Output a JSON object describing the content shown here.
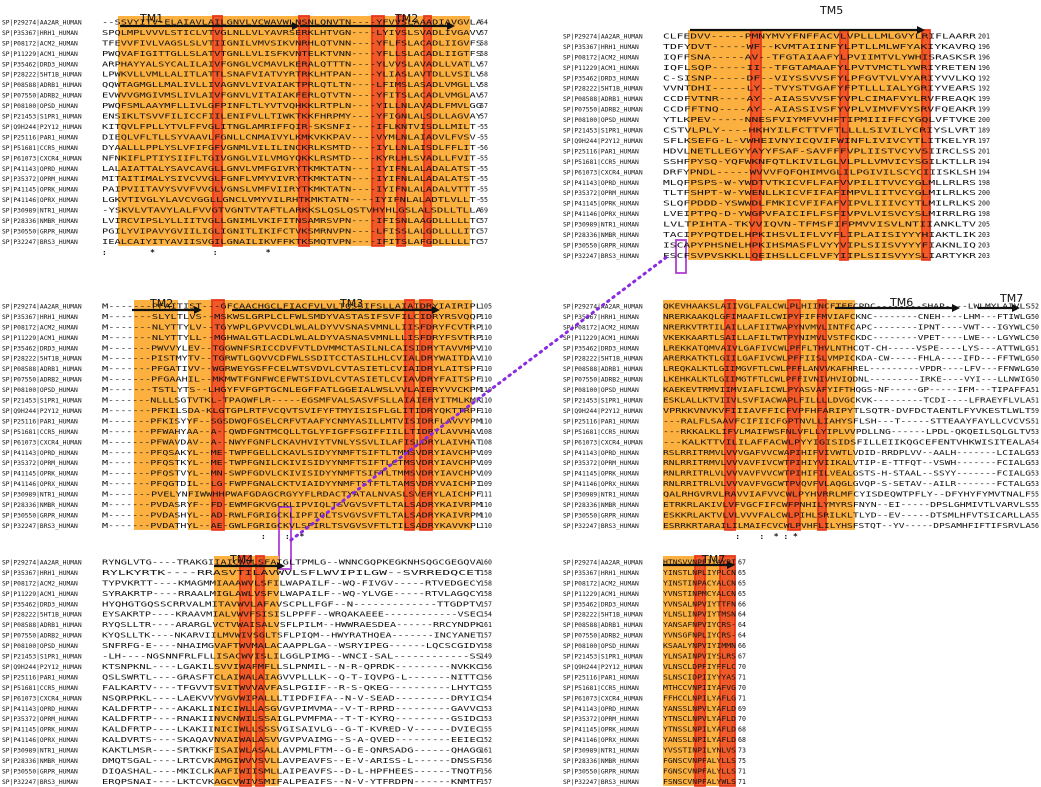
{
  "colors": {
    "tm_fill": "#fbb040",
    "conserved_fill": "#ef5a28",
    "box_red": "#e8381d",
    "box_purple": "#b13dd4",
    "link_purple": "#8a2be2"
  },
  "labels": [
    "SP|P29274|AA2AR_HUMAN",
    "SP|P35367|HRH1_HUMAN",
    "SP|P08172|ACM2_HUMAN",
    "SP|P11229|ACM1_HUMAN",
    "SP|P35462|DRD3_HUMAN",
    "SP|P28222|5HT1B_HUMAN",
    "SP|P08588|ADRB1_HUMAN",
    "SP|P07550|ADRB2_HUMAN",
    "SP|P08100|OPSD_HUMAN",
    "SP|P21453|S1PR1_HUMAN",
    "SP|Q9H244|P2Y12_HUMAN",
    "SP|P25116|PAR1_HUMAN",
    "SP|P51681|CCR5_HUMAN",
    "SP|P61073|CXCR4_HUMAN",
    "SP|P41143|OPRD_HUMAN",
    "SP|P35372|OPRM_HUMAN",
    "SP|P41145|OPRK_HUMAN",
    "SP|P41146|OPRX_HUMAN",
    "SP|P30989|NTR1_HUMAN",
    "SP|P28336|NMBR_HUMAN",
    "SP|P30550|GRPR_HUMAN",
    "SP|P32247|BRS3_HUMAN"
  ],
  "blocks": [
    {
      "id": "b1",
      "seqs": [
        "--SSVYITV-ELAIAVLAILGNVLVCWAVWLNSNLQNVTN----YFVVSLAAADIAVGVLA",
        "SPQLMPLVVVLSTICLVTVGLNLLVLYAVRSERKLHTVGN----LYIVSLSVADLIVGAVV",
        "TFEVVFIVLVAGSLSLVTIIGNILVMVSIKVNRHLQTVNN----YFLFSLACADLIIGVFS",
        "PWQVAFIGITTGLLSLATVTGNLLVLISFKVNTELKTVNN----YFLLSLACADLIIGTFS",
        "ARPHAYYALSYCALILAIVFGNGLVCMAVLKERALQTTTN----YLVVSLAVADLLVATLV",
        "LPWKVLLVMLLALITLATTLSNAFVIATVYRTRKLHTPAN----YLIASLAVTDLLVSILV",
        "QQWTAGMGLLMALIVLLIVAGNVLVIVAIAKTPRLQTLTN----LFIMSLASADLVMGLLV",
        "EVWVVGMGIVMSLIVLAIVFGNVLVITAIAKFERLQTVTN----YFITSLACADLVMGLAV",
        "PWQFSMLAAYMFLLIVLGFPINFLTLYVTVQHKKLRTPLN----YILLNLAVADLFMVLGG",
        "ENSIKLTSVVFILICCFIILENIFVLLTIWKTKKFHRPMY----YFIGNLALSDLLAGVAY",
        "KITQVLFPLLYTVLFFVGLITNGLAMRIFFQIR-SKSNFI----IFLKNTVISDLLMILT-",
        "DIEQLVFLTLLSYVAAVLFGNLLCNMAIVYLKMKVKKPAV----VYMLNLAIADVLFVSV-",
        "DYAALLLPPLYSLVFIFGFVGNMLVILILINCKRLKSMTD----IYLLNLAISDLFFLIT-",
        "NFNKIFLPTIYSIIFLTGIVGNGLVILVMGYQKKLRSMTD----KYRLHLSVADLLFVIT-",
        "LALAIATTALYSAVCAVGLLGNVLVMFGIVRYTKMKTATN----IYIFNLALADALATST-",
        "MITAITIMALYSIVCVVGLFGNFLVMYVIVRYTKMKTATN----IYIFNLALADALATST-",
        "PAIPVIITAVYSVVFVVGLVGNSLVMFVIIRYTKMKTATN----IYIFNLALADALVTTT-",
        "LGKVTIVGLYLAVCVGGLLGNCLVMYVILRHTKMKTATN----IYIFNLALADTLVLLT-",
        "-YSKVLVTAVYLALFVVGTVGNTVTAFTLARKKSLQSLQSTVHYHLGSLALSDLLTLLA",
        "LVIRCVIPSLYLLIITVGLLGNIMLVKIFITNSAMRSVPN----IFISNLAAGDLLLLLTC",
        "PGILYVIPAVYGVIILIGLIGNITLIKIFCTVKSMRNVPN----LFISSLALGDLLLLITC",
        "IEALCAIYITYAVIISVGILGNAILIKVFFKTKSMQTVPN----IFITSLAFGDLLLLLTC"
      ],
      "nums": [
        "54",
        "57",
        "58",
        "58",
        "57",
        "58",
        "58",
        "57",
        "57",
        "57",
        "55",
        "55",
        "56",
        "55",
        "55",
        "55",
        "55",
        "55",
        "59",
        "57",
        "57",
        "57"
      ],
      "cons": ":         *            :          *"
    },
    {
      "id": "b2",
      "seqs": [
        "M-------PFAITIST---GFCAACHGCLFIACFVLVLTQSSIFSLLAIAIDRYIAIRIPL",
        "M-------SLYLTLVS--MSKWSLGRPLCLFWLSMDYVASTASIFSVFILCIDRYRSVQQP",
        "M-------NLYTTYLV--TGYWPLGPVVCDLWLALDYVVSNASVMNLLIISFDRYFCVTRP",
        "M-------NLYTTYLL--MGHWALGTLACDLWLALDYVASNASVMNLLLISFDRYFSVTRP",
        "M-------PWVVYLEV--TGGWNFSRICCDVFVTLDVMMCTASILNLCAISIDRYTAVVMPV",
        "M-------PISTMYTV--TGRWTLGQVVCDFWLSSDITCCTASILHLCVIALDRYWAITDAV",
        "M-------PFGATIVV--WGRWEYGSFFCELWTSVDVLCVTASIETLCVIAIDRYLAITSPF",
        "M-------PFGAAHIL--MKMWTFGNFWCEFWTSIDVLCVTASIETLCVIAVDRYFAITSPF",
        "M-------TSTLYTS--LHGYFVFGPTGCNLEGFFATLGGEIALWSLVVLAIERYVVCKPM",
        "M-------NLLLSGTVTKL-TPAQWFLR-----EGSMFVALSASVFSLLAIAIERYITMLKMK",
        "M-------PFKILSDA-KLGTGPLRTFVCQVTSVIFYFTMYISISFLGLITIDRYQKTTRPF",
        "M-------PFKISYYF--SGSDWQFGSELCRFVTAAFYCNMYASILLMTVISIDRFLAVVYPM",
        "M-------PFWAHYAA--A--QWDFGNTMCQLLTGLYFIGFFSGIFFIILLTIDRYLAVVHAV",
        "M-------PFWAVDAV--A--NWYFGNFLCKAVHVIYTVNLYSSVLILAFISLDRYLAIVHAT",
        "M-------PFQSAKYL--ME-TWPFGELLCKAVLSIDYYNMFTSIFTLTMMSVDRYIAVCHPV",
        "M-------PFQSTKYL--ME-TWPFGNILCKIVISIDYYNMFTSIFTLCTMSVDRYIAVCHPV",
        "M-------PFQSTVYL--MN-SWPFGDVLCKIVISIDYYNMFTSIFTLTMMSVDRYIAVCHPV",
        "M-------PFQGTDIL--LG-FWPFGNALCKTVIAIDYYNMFTSTFTLTAMSVDRYVAICHPI",
        "M-------PVELYNFIWWHHPWAFGDAGCRGYYFLRDACTYATALNVASLSVERYLAICHPF",
        "M-------PVDASRYF--FD-EWMFGKVGCKLIPVIQLTSVGVSVFTLTALSADRYKAIVRPM",
        "M-------PVDASHYL--AD-RWLFGRIGCKLIPFIQLTSVGVSVFTLTALSADRYKAIVRPM",
        "M-------PVDATHYL--AE-GWLFGRIGCKVLSFIRLTSVGVSVFTLTILSADRYKAVVKPL"
      ],
      "nums": [
        "105",
        "110",
        "110",
        "110",
        "110",
        "110",
        "110",
        "110",
        "110",
        "110",
        "110",
        "110",
        "108",
        "108",
        "109",
        "109",
        "109",
        "109",
        "111",
        "110",
        "110",
        "110"
      ],
      "cons": "                                 :    :  *"
    },
    {
      "id": "b3",
      "seqs": [
        "RYNGLVTG----TRAKGIIAICWVLSFAIGLTPMLG--WNNCGQPKEGKNHSQGCGEGQVA",
        "RYLKYRTK----RRASVTILAVWVLSFLWVIPILGW--SVRREDQCET",
        "TYPVKRTT----KMAGMMIAAAWVLSFILWAPAILF--WQ-FIVGV-----RTVEDGECY",
        "SYRAKRTP----RRAALMIGLAWLVSFVLWAPAILF--WQ-YLVGE-----RTVLAGQCY",
        "HYQHGTGQSSCRRVALMITAVWVLAFAVSCPLLFGF--N-------------TTGDPTV",
        "EYSAKRTP----KRAAVMIALVWVFSISISLPPFF--WRQAKAEEE------------VSEC",
        "RYQSLLTR----ARARGLVCTVWAISALVSFLPILM--HWWRAESDEA------RRCYNDPK",
        "KYQSLLTK----NKARVIILMVWIVSGLTSFLPIQM--HWYRATHQEA-------INCYANET",
        "SNFRFG-E----NHAIMGVAFTWVMALACAAPPLGA--WSRYIPEG------LQCSCGIDY",
        "-LH----NGSNNFRLFLLISACWVISLILGGLPIMG--WNCI-SAL------------SS",
        "KTSNPKNL----LGAKILSVVIWAFMFLLSLPNMIL--N-R-QPRDK---------NVKKC",
        "QSLSWRTL----GRASFTCLAIWALAIAGVVPLLLK--Q-T-IQVPG-L-------NITTC",
        "FALKARTV----TFGVVTSVITWVVAVFASLPGIIF--R-S-QKEG----------LHYTC",
        "NSQRPRKL----LAEKVVYVGVWIPALLLTIPDFIFA--N-V-SEAD---------DRYIC",
        "KALDFRTP----AKAKLINICIWLLASGVGVPIMVMA--V-T-RPRD---------GAVVC",
        "KALDFRTP----RNAKIINVCNWILSSAIGLPVMFMA--T-T-KYRQ---------GSIDC",
        "KALDFRTP----LKAKIINICIWLLSSSVGISAIVLG--G-T-KVRED-V------DVIEC",
        "KALDVRTS----SKAQAVNVAIWALASVVGVPVAIMG--S-A-QVED---------EEIEC",
        "KAKTLMSR----SRTKKFISAIWLASALLAVPMLFTM--G-E-QNRSADG------QHAGG",
        "DMQTSGAL----LRTCVKAMGIWVVSVLLAVPEAVFS--E-V-ARISS-L------DNSSF",
        "DIQASHAL----MKICLKAAFIWIISMLLAIPEAVFS--D-L-HPFHEES------TNQTF",
        "ERQPSNAI----LKTCVKAGCVWIVSMIFALPEAIFS--N-V-YTFRDPN------KNMTF"
      ],
      "nums": [
        "160",
        "158",
        "158",
        "158",
        "157",
        "154",
        "161",
        "157",
        "158",
        "149",
        "156",
        "156",
        "155",
        "154",
        "153",
        "153",
        "155",
        "152",
        "161",
        "156",
        "156",
        "157"
      ],
      "cons": "            :    *"
    },
    {
      "id": "b4",
      "seqs": [
        "CLFEDVV-----PMNYMVYFNFFACVLVPLLLMLGVYLRIFLAARR",
        "TDFYDVT-----WF--KVMTAIINFYLPTLLMLWFYAKIYKAVRQ",
        "IQFFSNA-----AV--TFGTAIAAFYLPVIIMTVLYWHISRASKSR",
        "IQFLSQP-----II--TFGTAMAAFYLPVTVMCTLYWRIYRETEN",
        "C-SISNP-----DF--VIYSSVVSFYLPFGVTVLVYARIYVVLKQ",
        "VVNTDHI-----LY--TVYSTVGAFYFPTLLLIALYGRIYVEARS",
        "CCDFVTNR----AY--AIASSVVSFYVPLCIMAFVYLRVFREAQK",
        "CCDFFTNQ----AY--AIASSIVSFYVPLVIMVFVYSRVFQEAKR",
        "YTLKPEV-----NNESFVIYMFVVHFTIPMIIIFFCYGQLVFTVKE",
        "CSTVLPLY----HKHYILFCTTVFTLLLLSIVILYCRIYSLVRT",
        "SFLKSEFG-L-VWHEIVNYICQVIFWINFLIVIVCYTLITKELYR",
        "HDVLNETLLEGYYAYYFSAF-SAVFFFVPLIISTVCYVSIIRCLSS",
        "SSHFPYSQ-YQFWKNFQTLKIVILGLVLPLLVMVICYSGILKTLLR",
        "DRFYPNDL-----WVVVFQFQHIMVGLILPGIVILSCYCIIISKLSH",
        "MLQFPSPS-W-YWDTVTKICVFLFAFVVPILITVVCYGLMLLRLRS",
        "TLTFSHPT-W-YWENLLKICVFIFAFIMPVLIITVCYGLMILRLKS",
        "SLQFPDDD-YSWWDLFMKICVFIFAFVIPVLIIIVCYTLMILRLKS",
        "LVEIPTPQ-D-YWGPVFAICIFLFSFIVPVLVISVCYSLMIRRLRG",
        "LVLTPIHTA-TKVVIQVN-TFMSFIFPMVVISVLNTIIANKLTV",
        "TACIPYPQTDELHPKIHSVLIFLVYFLIPLAIISIYYYHIAKTLIK",
        "ISCAPYPHSNELHPKIHSMASFLVYYVIPLSIISVYYYFIAKNLIQ",
        "ESCFSVPVSKKLLQEIHSLLCFLVFYIIPLSIISVYYSLIARTYKR"
      ],
      "nums": [
        "201",
        "196",
        "196",
        "196",
        "192",
        "192",
        "199",
        "199",
        "200",
        "189",
        "197",
        "201",
        "194",
        "194",
        "198",
        "200",
        "200",
        "198",
        "205",
        "203",
        "203",
        "203"
      ],
      "cons": ""
    },
    {
      "id": "b5",
      "seqs": [
        "QKEVHAAKSLAIIVGLFALCWLPLHIINCFTFFCPDC--------SHAP----LWLMYLAIVLS",
        "NRERKAAKQLGFIMAAFILCWIPYFIFFMVIAFCKNC--------CNEH----LHM---FTIWLG",
        "NRERKVTRTILAILLAFIITWAPYNVMVLINTFCAPC--------IPNT----VWT---IGYWLC",
        "VKEKKAARTLSAILLAFILTWTPYNIMVLVSTFCKDC--------VPET----LWE---LGYWLC",
        "LREKKATQMVAIVLGAFIVCWLPFFLTHVLNTHCQT-CH-----VSPE----LYS---ATTWLG",
        "ARERKATKTLGIILGAFIVCWLPFFIISLVMPICKDA-CW-----FHLA----IFD---FFTWLG",
        "LREQKALKTLGIIMGVFTLCWLPFFLANVVKAFHREL---------VPDR----LFV---FFNWLG",
        "LKEHKALKTLGIIMGTFTLCWLPFFIVNIVHVIQDNL---------IRKE----VYI---LLNWIG",
        "KAEKEVTRMVIIMVIAFLICWLPYASVAFYIFTHQGS-NF-----GP-----IFM---TIPAFFA",
        "ESKLALLKTVIIVLSVFIACWAPLFILLLLDVGCKVK---------TCDI----LFRAEYFLVLA",
        "VPRKKVNVKVFIIIAVFFICFVPFHFARIPYTLSQTR-DVFDCTAENTLFYVKESTLWLT",
        "---RALFLSAAVFCIFIICFGPTNVLLIAHYSFLSH---T-----STTEAAYFAYLLCVCVS",
        "---RKKALKLIFVLMAIFWSFNLVFLLYIPLVVPDLLNG------LPDL-QKQEILSQLGLTV",
        "---KALKTTVILILAFFACWLPYYIGISIDSFILLEIIKQGCEFENTVHKWISITEALA",
        "RSLRRITRMVLVVVGAFVVCWAPIHIFVIVWTLVDID-RRDPLVV--AALH-------LCIALG",
        "RNLRRITRMVLVVVAVFIVCWTPIHIYVIIKALVTIP-E-TTFQT--VSWH-------FCIALG",
        "RNLRRITRLVLVVVAVFVVCWTPIHIFILVEALGSTS-H-STAAL--SSYY-------FCIALG",
        "RNLRRITRLVLVVVAVFVGCWTPVQVFVLAQGLGVQP-S-SETAV--AILR-------FCTALG",
        "QALRHGVRVLRAVVIAFVVCWLPYHVRRLMFCYISDEQWTPFLY--DFYHYFYMVTNALF",
        "ETRKRLAKIVLVFVGCFIFCWFPNHILYMYRSFNYN--EI-----DPSLGHMIVTLVARVLS",
        "ESKKRLAKTVLVLVVVFALCWLPIHLSRILKLTLYD--EV-----DTSMLHFVTSICARLLA",
        "ESRRKRTARAILILMAIFCVCWLPVHFLILYHSFSTQT--YV-----DPSAMHFIFTIFSRVLA"
      ],
      "nums": [
        "52",
        "50",
        "50",
        "50",
        "51",
        "50",
        "50",
        "50",
        "51",
        "51",
        "59",
        "51",
        "53",
        "54",
        "53",
        "53",
        "53",
        "53",
        "55",
        "55",
        "55",
        "56"
      ],
      "cons": "               :    :  * : *"
    },
    {
      "id": "b6",
      "seqs": [
        "HTNSVVNPFIYAYRI",
        "YINSTLNPLIYPLCN",
        "YINSTINPACYALCN",
        "YVNSTINPMCYALCN",
        "YVNSALNPVIYTTFN",
        "YLNSLINPVIYTMSN",
        "YANSAFNPVIYCRS-",
        "YVNSGFNPLIYCRS-",
        "KSAALYNPVIYIMMN",
        "YLNSAINPVIYSLRS",
        "VLNSCLDPFIYFFLC",
        "SLNSCIDPIIYYYAS",
        "MTHCCVNPIIYAFVG",
        "FFHCCLNPILYAFLG",
        "YANSSLNPVLYAFLD",
        "YTNSCLNPVLYAFLD",
        "YTNSSLNPILYAFLD",
        "YANSSLNPILYAFLD",
        "YVSSTINPILYNLVS",
        "FGNSCVNPFALYLLS",
        "FGNSCVNPFALYLLS",
        "FSNSCVNPFALYWLS"
      ],
      "nums": [
        "67",
        "65",
        "65",
        "65",
        "66",
        "64",
        "64",
        "64",
        "66",
        "67",
        "70",
        "71",
        "70",
        "71",
        "69",
        "70",
        "68",
        "68",
        "73",
        "75",
        "71",
        "71"
      ],
      "cons": ""
    }
  ],
  "tm_regions": [
    {
      "label": "TM1"
    },
    {
      "label": "TM2"
    },
    {
      "label": "TM2"
    },
    {
      "label": "TM3"
    },
    {
      "label": "TM4"
    },
    {
      "label": "TM5"
    },
    {
      "label": "TM6"
    },
    {
      "label": "TM7"
    },
    {
      "label": "TM7"
    }
  ]
}
